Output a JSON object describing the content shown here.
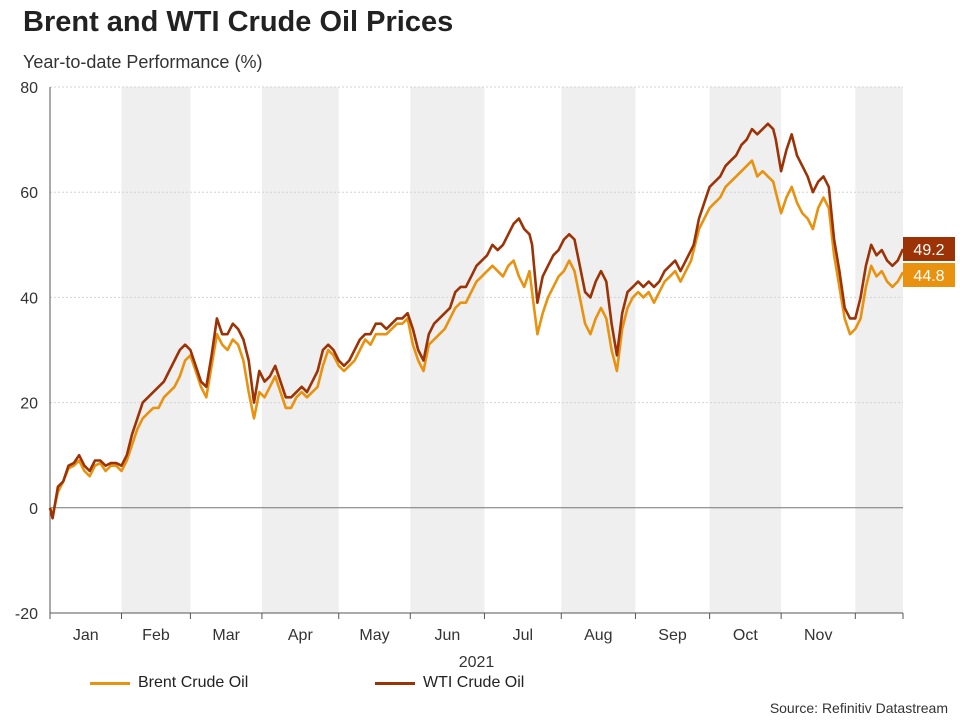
{
  "title": "Brent and WTI Crude Oil Prices",
  "subtitle": "Year-to-date Performance (%)",
  "source": "Source: Refinitiv Datastream",
  "chart_data": {
    "type": "line",
    "title": "Brent and WTI Crude Oil Prices",
    "subtitle": "Year-to-date Performance (%)",
    "xlabel": "2021",
    "ylabel": "",
    "ylim": [
      -20,
      80
    ],
    "yticks": [
      "-20",
      "0",
      "20",
      "40",
      "60",
      "80"
    ],
    "months": [
      "Jan",
      "Feb",
      "Mar",
      "Apr",
      "May",
      "Jun",
      "Jul",
      "Aug",
      "Sep",
      "Oct",
      "Nov"
    ],
    "grid": true,
    "legend_position": "bottom-left",
    "series": [
      {
        "name": "Brent Crude Oil",
        "color": "#e8920f",
        "end_label": "44.8",
        "points": [
          [
            0,
            0
          ],
          [
            1,
            -1.5
          ],
          [
            3,
            3
          ],
          [
            5,
            5
          ],
          [
            7,
            7.5
          ],
          [
            9,
            8
          ],
          [
            11,
            9
          ],
          [
            13,
            7
          ],
          [
            15,
            6
          ],
          [
            17,
            8
          ],
          [
            19,
            8.5
          ],
          [
            21,
            7
          ],
          [
            23,
            8
          ],
          [
            25,
            8
          ],
          [
            27,
            7
          ],
          [
            29,
            9
          ],
          [
            31,
            12
          ],
          [
            33,
            15
          ],
          [
            35,
            17
          ],
          [
            37,
            18
          ],
          [
            39,
            19
          ],
          [
            41,
            19
          ],
          [
            43,
            21
          ],
          [
            45,
            22
          ],
          [
            47,
            23
          ],
          [
            49,
            25
          ],
          [
            51,
            28
          ],
          [
            53,
            29
          ],
          [
            55,
            26
          ],
          [
            57,
            23
          ],
          [
            59,
            21
          ],
          [
            61,
            27
          ],
          [
            63,
            33
          ],
          [
            65,
            31
          ],
          [
            67,
            30
          ],
          [
            69,
            32
          ],
          [
            71,
            31
          ],
          [
            73,
            28
          ],
          [
            75,
            22
          ],
          [
            77,
            17
          ],
          [
            79,
            22
          ],
          [
            81,
            21
          ],
          [
            83,
            23
          ],
          [
            85,
            25
          ],
          [
            87,
            22
          ],
          [
            89,
            19
          ],
          [
            91,
            19
          ],
          [
            93,
            21
          ],
          [
            95,
            22
          ],
          [
            97,
            21
          ],
          [
            99,
            22
          ],
          [
            101,
            23
          ],
          [
            103,
            27
          ],
          [
            105,
            30
          ],
          [
            107,
            29
          ],
          [
            109,
            27
          ],
          [
            111,
            26
          ],
          [
            113,
            27
          ],
          [
            115,
            28
          ],
          [
            117,
            30
          ],
          [
            119,
            32
          ],
          [
            121,
            31
          ],
          [
            123,
            33
          ],
          [
            125,
            33
          ],
          [
            127,
            33
          ],
          [
            129,
            34
          ],
          [
            131,
            35
          ],
          [
            133,
            35
          ],
          [
            135,
            36
          ],
          [
            137,
            31
          ],
          [
            139,
            28
          ],
          [
            141,
            26
          ],
          [
            143,
            31
          ],
          [
            145,
            32
          ],
          [
            147,
            33
          ],
          [
            149,
            34
          ],
          [
            151,
            36
          ],
          [
            153,
            38
          ],
          [
            155,
            39
          ],
          [
            157,
            39
          ],
          [
            159,
            41
          ],
          [
            161,
            43
          ],
          [
            163,
            44
          ],
          [
            165,
            45
          ],
          [
            167,
            46
          ],
          [
            169,
            45
          ],
          [
            171,
            44
          ],
          [
            173,
            46
          ],
          [
            175,
            47
          ],
          [
            177,
            44
          ],
          [
            179,
            42
          ],
          [
            181,
            45
          ],
          [
            182,
            41
          ],
          [
            184,
            33
          ],
          [
            186,
            37
          ],
          [
            188,
            40
          ],
          [
            190,
            42
          ],
          [
            192,
            44
          ],
          [
            194,
            45
          ],
          [
            196,
            47
          ],
          [
            198,
            45
          ],
          [
            200,
            40
          ],
          [
            202,
            35
          ],
          [
            204,
            33
          ],
          [
            206,
            36
          ],
          [
            208,
            38
          ],
          [
            210,
            36
          ],
          [
            212,
            30
          ],
          [
            214,
            26
          ],
          [
            216,
            34
          ],
          [
            218,
            38
          ],
          [
            220,
            40
          ],
          [
            222,
            41
          ],
          [
            224,
            40
          ],
          [
            226,
            41
          ],
          [
            228,
            39
          ],
          [
            230,
            41
          ],
          [
            232,
            43
          ],
          [
            234,
            44
          ],
          [
            236,
            45
          ],
          [
            238,
            43
          ],
          [
            240,
            45
          ],
          [
            242,
            47
          ],
          [
            243,
            49
          ],
          [
            245,
            53
          ],
          [
            247,
            55
          ],
          [
            249,
            57
          ],
          [
            251,
            58
          ],
          [
            253,
            59
          ],
          [
            255,
            61
          ],
          [
            257,
            62
          ],
          [
            259,
            63
          ],
          [
            261,
            64
          ],
          [
            263,
            65
          ],
          [
            265,
            66
          ],
          [
            267,
            63
          ],
          [
            269,
            64
          ],
          [
            271,
            63
          ],
          [
            273,
            62
          ],
          [
            274,
            60
          ],
          [
            276,
            56
          ],
          [
            278,
            59
          ],
          [
            280,
            61
          ],
          [
            282,
            58
          ],
          [
            284,
            56
          ],
          [
            286,
            55
          ],
          [
            288,
            53
          ],
          [
            290,
            57
          ],
          [
            292,
            59
          ],
          [
            294,
            57
          ],
          [
            296,
            48
          ],
          [
            298,
            42
          ],
          [
            300,
            36
          ],
          [
            302,
            33
          ],
          [
            304,
            34
          ],
          [
            306,
            36
          ],
          [
            308,
            42
          ],
          [
            310,
            46
          ],
          [
            312,
            44
          ],
          [
            314,
            45
          ],
          [
            316,
            43
          ],
          [
            318,
            42
          ],
          [
            320,
            43
          ],
          [
            322,
            44.8
          ]
        ]
      },
      {
        "name": "WTI Crude Oil",
        "color": "#9c3306",
        "end_label": "49.2",
        "points": [
          [
            0,
            0
          ],
          [
            1,
            -2
          ],
          [
            3,
            4
          ],
          [
            5,
            5
          ],
          [
            7,
            8
          ],
          [
            9,
            8.5
          ],
          [
            11,
            10
          ],
          [
            13,
            8
          ],
          [
            15,
            7
          ],
          [
            17,
            9
          ],
          [
            19,
            9
          ],
          [
            21,
            8
          ],
          [
            23,
            8.5
          ],
          [
            25,
            8.5
          ],
          [
            27,
            8
          ],
          [
            29,
            10
          ],
          [
            31,
            14
          ],
          [
            33,
            17
          ],
          [
            35,
            20
          ],
          [
            37,
            21
          ],
          [
            39,
            22
          ],
          [
            41,
            23
          ],
          [
            43,
            24
          ],
          [
            45,
            26
          ],
          [
            47,
            28
          ],
          [
            49,
            30
          ],
          [
            51,
            31
          ],
          [
            53,
            30
          ],
          [
            55,
            27
          ],
          [
            57,
            24
          ],
          [
            59,
            23
          ],
          [
            61,
            29
          ],
          [
            63,
            36
          ],
          [
            65,
            33
          ],
          [
            67,
            33
          ],
          [
            69,
            35
          ],
          [
            71,
            34
          ],
          [
            73,
            32
          ],
          [
            75,
            28
          ],
          [
            77,
            20
          ],
          [
            79,
            26
          ],
          [
            81,
            24
          ],
          [
            83,
            25
          ],
          [
            85,
            27
          ],
          [
            87,
            24
          ],
          [
            89,
            21
          ],
          [
            91,
            21
          ],
          [
            93,
            22
          ],
          [
            95,
            23
          ],
          [
            97,
            22
          ],
          [
            99,
            24
          ],
          [
            101,
            26
          ],
          [
            103,
            30
          ],
          [
            105,
            31
          ],
          [
            107,
            30
          ],
          [
            109,
            28
          ],
          [
            111,
            27
          ],
          [
            113,
            28
          ],
          [
            115,
            30
          ],
          [
            117,
            32
          ],
          [
            119,
            33
          ],
          [
            121,
            33
          ],
          [
            123,
            35
          ],
          [
            125,
            35
          ],
          [
            127,
            34
          ],
          [
            129,
            35
          ],
          [
            131,
            36
          ],
          [
            133,
            36
          ],
          [
            135,
            37
          ],
          [
            137,
            34
          ],
          [
            139,
            30
          ],
          [
            141,
            28
          ],
          [
            143,
            33
          ],
          [
            145,
            35
          ],
          [
            147,
            36
          ],
          [
            149,
            37
          ],
          [
            151,
            38
          ],
          [
            153,
            41
          ],
          [
            155,
            42
          ],
          [
            157,
            42
          ],
          [
            159,
            44
          ],
          [
            161,
            46
          ],
          [
            163,
            47
          ],
          [
            165,
            48
          ],
          [
            167,
            50
          ],
          [
            169,
            49
          ],
          [
            171,
            50
          ],
          [
            173,
            52
          ],
          [
            175,
            54
          ],
          [
            177,
            55
          ],
          [
            179,
            53
          ],
          [
            181,
            52
          ],
          [
            182,
            50
          ],
          [
            184,
            39
          ],
          [
            186,
            44
          ],
          [
            188,
            46
          ],
          [
            190,
            48
          ],
          [
            192,
            49
          ],
          [
            194,
            51
          ],
          [
            196,
            52
          ],
          [
            198,
            51
          ],
          [
            200,
            46
          ],
          [
            202,
            41
          ],
          [
            204,
            40
          ],
          [
            206,
            43
          ],
          [
            208,
            45
          ],
          [
            210,
            43
          ],
          [
            212,
            35
          ],
          [
            214,
            29
          ],
          [
            216,
            37
          ],
          [
            218,
            41
          ],
          [
            220,
            42
          ],
          [
            222,
            43
          ],
          [
            224,
            42
          ],
          [
            226,
            43
          ],
          [
            228,
            42
          ],
          [
            230,
            43
          ],
          [
            232,
            45
          ],
          [
            234,
            46
          ],
          [
            236,
            47
          ],
          [
            238,
            45
          ],
          [
            240,
            47
          ],
          [
            242,
            49
          ],
          [
            243,
            50
          ],
          [
            245,
            55
          ],
          [
            247,
            58
          ],
          [
            249,
            61
          ],
          [
            251,
            62
          ],
          [
            253,
            63
          ],
          [
            255,
            65
          ],
          [
            257,
            66
          ],
          [
            259,
            67
          ],
          [
            261,
            69
          ],
          [
            263,
            70
          ],
          [
            265,
            72
          ],
          [
            267,
            71
          ],
          [
            269,
            72
          ],
          [
            271,
            73
          ],
          [
            273,
            72
          ],
          [
            274,
            70
          ],
          [
            276,
            64
          ],
          [
            278,
            68
          ],
          [
            280,
            71
          ],
          [
            282,
            67
          ],
          [
            284,
            65
          ],
          [
            286,
            63
          ],
          [
            288,
            60
          ],
          [
            290,
            62
          ],
          [
            292,
            63
          ],
          [
            294,
            61
          ],
          [
            296,
            51
          ],
          [
            298,
            45
          ],
          [
            300,
            38
          ],
          [
            302,
            36
          ],
          [
            304,
            36
          ],
          [
            306,
            40
          ],
          [
            308,
            46
          ],
          [
            310,
            50
          ],
          [
            312,
            48
          ],
          [
            314,
            49
          ],
          [
            316,
            47
          ],
          [
            318,
            46
          ],
          [
            320,
            47
          ],
          [
            322,
            49.2
          ]
        ]
      }
    ]
  },
  "legend": {
    "brent": "Brent Crude Oil",
    "wti": "WTI Crude Oil"
  }
}
